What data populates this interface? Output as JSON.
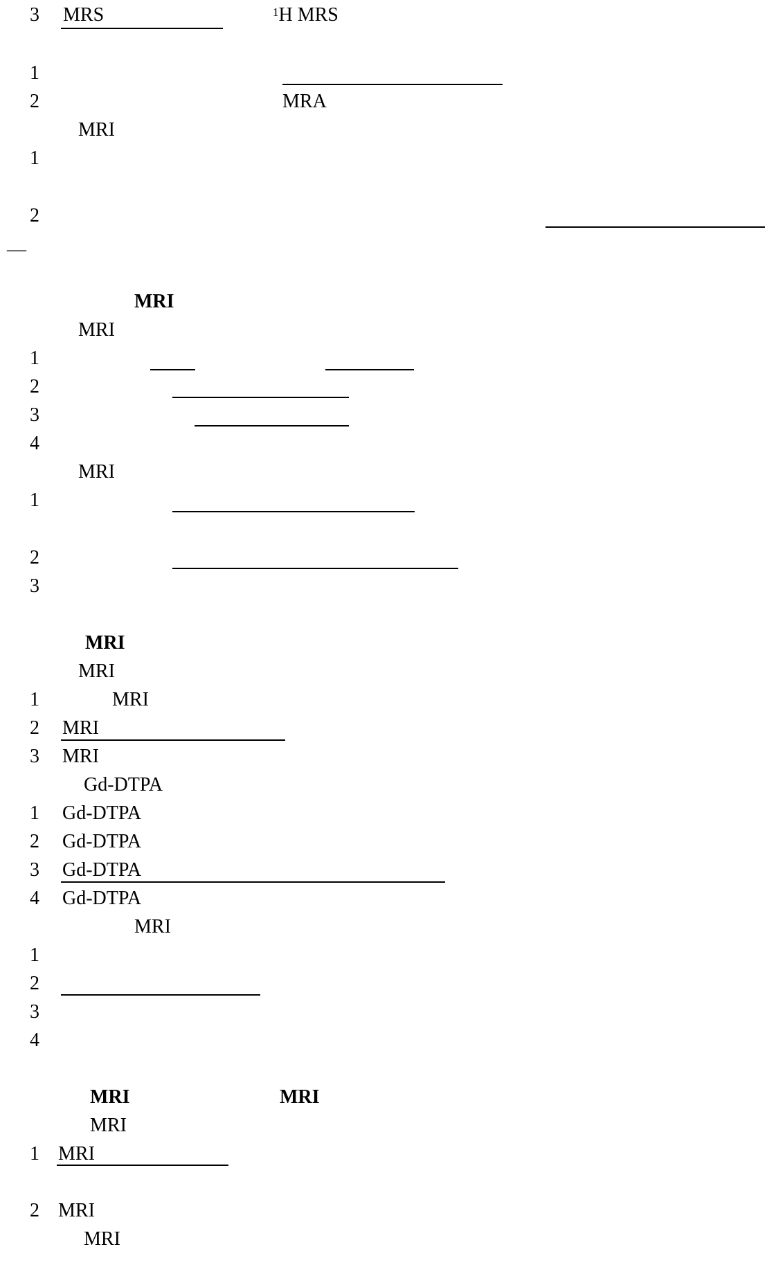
{
  "doc": {
    "line_01": {
      "num": "3",
      "text": "MRS",
      "text2_sup": "1",
      "text2": "H MRS"
    },
    "line_02": {
      "num": "1"
    },
    "line_03": {
      "num": "2",
      "text": "MRA"
    },
    "line_04": {
      "text": "MRI"
    },
    "line_05": {
      "num": "1"
    },
    "line_06": {
      "num": "2"
    },
    "line_07": {
      "dash": "—"
    },
    "heading_1": {
      "text": "MRI"
    },
    "line_08": {
      "text": "MRI"
    },
    "line_09": {
      "num": "1"
    },
    "line_10": {
      "num": "2"
    },
    "line_11": {
      "num": "3"
    },
    "line_12": {
      "num": "4"
    },
    "line_13": {
      "text": "MRI"
    },
    "line_14": {
      "num": "1"
    },
    "line_15": {
      "num": "2"
    },
    "line_16": {
      "num": "3"
    },
    "heading_2": {
      "text": "MRI"
    },
    "line_17": {
      "text": "MRI"
    },
    "line_18": {
      "num": "1",
      "text": "MRI"
    },
    "line_19": {
      "num": "2",
      "text": "MRI"
    },
    "line_20": {
      "num": "3",
      "text": "MRI"
    },
    "line_21": {
      "text": "Gd-DTPA"
    },
    "line_22": {
      "num": "1",
      "text": "Gd-DTPA"
    },
    "line_23": {
      "num": "2",
      "text": "Gd-DTPA"
    },
    "line_24": {
      "num": "3",
      "text": "Gd-DTPA"
    },
    "line_25": {
      "num": "4",
      "text": "Gd-DTPA"
    },
    "line_26": {
      "text": "MRI"
    },
    "line_27": {
      "num": "1"
    },
    "line_28": {
      "num": "2"
    },
    "line_29": {
      "num": "3"
    },
    "line_30": {
      "num": "4"
    },
    "heading_3": {
      "text_a": "MRI",
      "text_b": "MRI"
    },
    "line_31": {
      "text": "MRI"
    },
    "line_32": {
      "num": "1",
      "text": "MRI"
    },
    "line_33": {
      "num": "2",
      "text": "MRI"
    },
    "line_34": {
      "text": "MRI"
    }
  }
}
